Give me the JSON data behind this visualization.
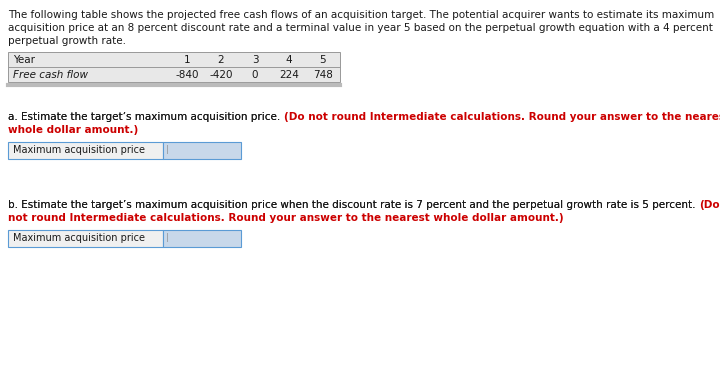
{
  "bg_color": "#ffffff",
  "text_color_black": "#1a1a1a",
  "text_color_red": "#cc0000",
  "font_family": "DejaVu Sans",
  "font_size": 7.5,
  "table_header_font_size": 7.5,
  "table_bg": "#e8e8e8",
  "table_border": "#999999",
  "input_border": "#5b9bd5",
  "input_label_bg": "#f0f0f0",
  "input_answer_bg": "#c8d8ea",
  "intro_line1": "The following table shows the projected free cash flows of an acquisition target. The potential acquirer wants to estimate its maximum",
  "intro_line2": "acquisition price at an 8 percent discount rate and a terminal value in year 5 based on the perpetual growth equation with a 4 percent",
  "intro_line3": "perpetual growth rate.",
  "table_col1_label": "Year",
  "table_col_nums": [
    "1",
    "2",
    "3",
    "4",
    "5"
  ],
  "table_row_label": "Free cash flow",
  "table_row_values": [
    "-840",
    "-420",
    "0",
    "224",
    "748"
  ],
  "part_a_black": "a. Estimate the target’s maximum acquisition price. ",
  "part_a_red_line1": "(Do not round Intermediate calculations. Round your answer to the nearest",
  "part_a_red_line2": "whole dollar amount.)",
  "part_b_black": "b. Estimate the target’s maximum acquisition price when the discount rate is 7 percent and the perpetual growth rate is 5 percent. ",
  "part_b_red_inline": "(Do",
  "part_b_red_line2": "not round Intermediate calculations. Round your answer to the nearest whole dollar amount.)",
  "input_label": "Maximum acquisition price"
}
